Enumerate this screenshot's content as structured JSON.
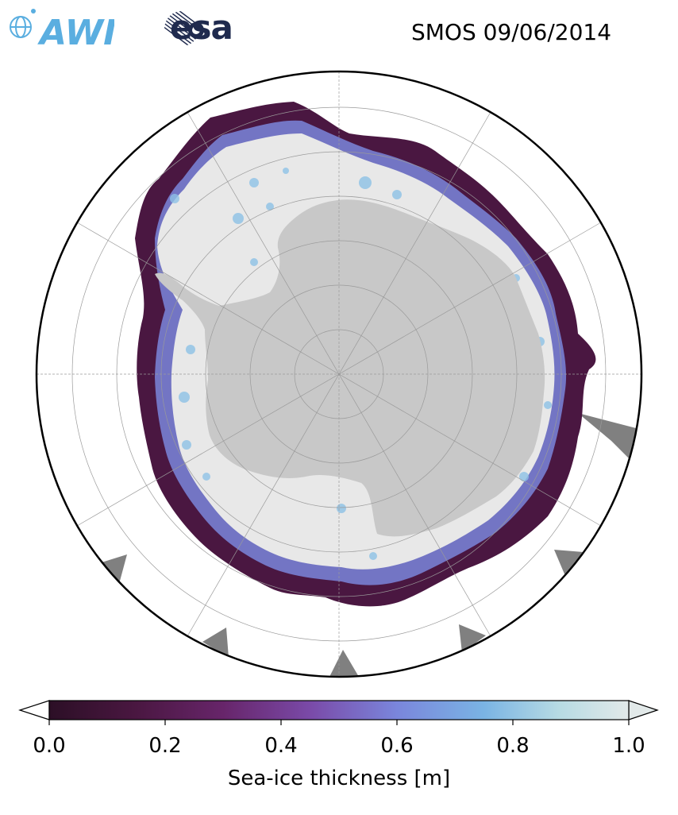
{
  "header": {
    "title": "SMOS 09/06/2014",
    "logo_left": "AWI",
    "logo_right": "esa"
  },
  "map": {
    "projection": "south-polar-stereographic",
    "land_color": "#c8c8c8",
    "thick_ice_color": "#e8e8e8",
    "ocean_color": "#ffffff",
    "missing_data_color": "#808080",
    "graticule": true
  },
  "colorbar": {
    "label": "Sea-ice thickness [m]",
    "ticks": [
      "0.0",
      "0.2",
      "0.4",
      "0.6",
      "0.8",
      "1.0"
    ],
    "min": 0.0,
    "max": 1.0,
    "extend": "both",
    "colormap": [
      "#2c0f26",
      "#561a4f",
      "#7a3b8d",
      "#7f6dd0",
      "#6fa3e3",
      "#9dcde3",
      "#e2e9e9"
    ]
  }
}
